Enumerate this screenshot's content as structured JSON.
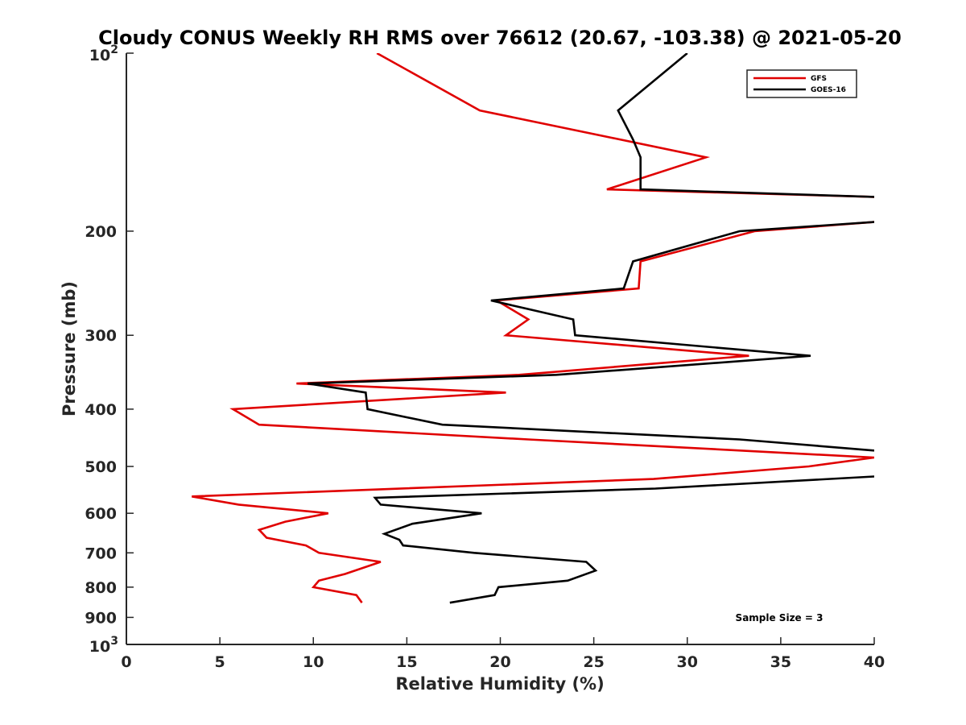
{
  "chart_data": {
    "type": "line",
    "title": "Cloudy CONUS Weekly RH RMS over 76612 (20.67, -103.38) @ 2021-05-20",
    "xlabel": "Relative Humidity (%)",
    "ylabel": "Pressure (mb)",
    "xlim": [
      0,
      40
    ],
    "ylim": [
      100,
      1000
    ],
    "yscale": "log",
    "y_reversed": true,
    "xticks": [
      0,
      5,
      10,
      15,
      20,
      25,
      30,
      35,
      40
    ],
    "xtick_labels": [
      "0",
      "5",
      "10",
      "15",
      "20",
      "25",
      "30",
      "35",
      "40"
    ],
    "yticks": [
      {
        "value": 200,
        "label": "200"
      },
      {
        "value": 300,
        "label": "300"
      },
      {
        "value": 400,
        "label": "400"
      },
      {
        "value": 500,
        "label": "500"
      },
      {
        "value": 600,
        "label": "600"
      },
      {
        "value": 700,
        "label": "700"
      },
      {
        "value": 800,
        "label": "800"
      },
      {
        "value": 900,
        "label": "900"
      }
    ],
    "yticks_pow": [
      {
        "value": 100,
        "base": "10",
        "exp": "2"
      },
      {
        "value": 1000,
        "base": "10",
        "exp": "3"
      }
    ],
    "legend_position": "top-right",
    "grid": false,
    "series": [
      {
        "name": "GFS",
        "color": "#e00000",
        "points": [
          [
            13.4,
            100
          ],
          [
            18.9,
            125
          ],
          [
            31.0,
            150
          ],
          [
            25.7,
            170
          ],
          [
            40,
            175
          ],
          [
            null,
            null
          ],
          [
            40,
            193
          ],
          [
            33.6,
            200
          ],
          [
            27.5,
            225
          ],
          [
            27.4,
            250
          ],
          [
            19.8,
            262
          ],
          [
            21.5,
            282
          ],
          [
            20.3,
            300
          ],
          [
            33.3,
            325
          ],
          [
            21.0,
            350
          ],
          [
            9.1,
            362
          ],
          [
            20.3,
            375
          ],
          [
            5.7,
            400
          ],
          [
            7.1,
            425
          ],
          [
            21.5,
            450
          ],
          [
            40,
            483
          ],
          [
            36.5,
            500
          ],
          [
            28.2,
            525
          ],
          [
            3.5,
            562
          ],
          [
            6.0,
            580
          ],
          [
            10.8,
            600
          ],
          [
            8.5,
            620
          ],
          [
            7.1,
            640
          ],
          [
            7.5,
            660
          ],
          [
            9.6,
            680
          ],
          [
            10.3,
            700
          ],
          [
            13.6,
            725
          ],
          [
            11.7,
            760
          ],
          [
            10.3,
            780
          ],
          [
            10.0,
            800
          ],
          [
            12.3,
            825
          ],
          [
            12.6,
            850
          ]
        ]
      },
      {
        "name": "GOES-16",
        "color": "#000000",
        "points": [
          [
            30.0,
            100
          ],
          [
            26.3,
            125
          ],
          [
            27.1,
            140
          ],
          [
            27.5,
            150
          ],
          [
            27.5,
            170
          ],
          [
            40,
            175
          ],
          [
            null,
            null
          ],
          [
            40,
            193
          ],
          [
            32.8,
            200
          ],
          [
            27.1,
            225
          ],
          [
            26.6,
            250
          ],
          [
            19.5,
            262
          ],
          [
            23.9,
            282
          ],
          [
            24.0,
            300
          ],
          [
            36.6,
            325
          ],
          [
            23.0,
            350
          ],
          [
            9.7,
            362
          ],
          [
            12.8,
            375
          ],
          [
            12.9,
            400
          ],
          [
            16.9,
            425
          ],
          [
            32.8,
            450
          ],
          [
            40,
            470
          ],
          [
            null,
            null
          ],
          [
            40,
            520
          ],
          [
            28.3,
            545
          ],
          [
            13.3,
            565
          ],
          [
            13.6,
            580
          ],
          [
            19.0,
            600
          ],
          [
            15.3,
            625
          ],
          [
            13.8,
            650
          ],
          [
            14.6,
            665
          ],
          [
            14.8,
            680
          ],
          [
            18.6,
            700
          ],
          [
            24.6,
            725
          ],
          [
            25.1,
            750
          ],
          [
            23.6,
            780
          ],
          [
            19.9,
            800
          ],
          [
            19.7,
            825
          ],
          [
            17.3,
            850
          ]
        ]
      }
    ],
    "annotation": "Sample Size = 3"
  }
}
